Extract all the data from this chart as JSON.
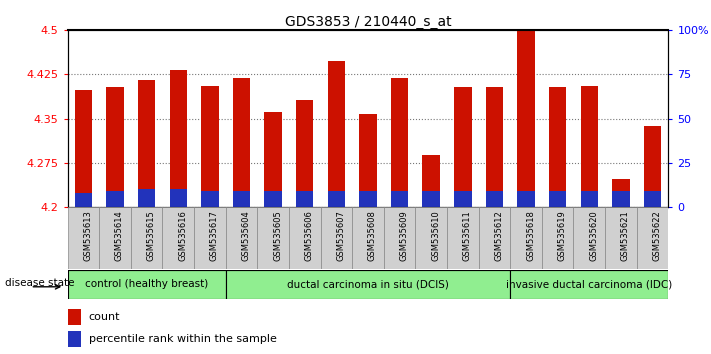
{
  "title": "GDS3853 / 210440_s_at",
  "samples": [
    "GSM535613",
    "GSM535614",
    "GSM535615",
    "GSM535616",
    "GSM535617",
    "GSM535604",
    "GSM535605",
    "GSM535606",
    "GSM535607",
    "GSM535608",
    "GSM535609",
    "GSM535610",
    "GSM535611",
    "GSM535612",
    "GSM535618",
    "GSM535619",
    "GSM535620",
    "GSM535621",
    "GSM535622"
  ],
  "count_values": [
    4.398,
    4.403,
    4.416,
    4.432,
    4.405,
    4.418,
    4.362,
    4.382,
    4.448,
    4.357,
    4.418,
    4.288,
    4.403,
    4.403,
    4.498,
    4.403,
    4.405,
    4.248,
    4.338
  ],
  "percentile_values": [
    8,
    9,
    10,
    10,
    9,
    9,
    9,
    9,
    9,
    9,
    9,
    9,
    9,
    9,
    9,
    9,
    9,
    9,
    9
  ],
  "groups": [
    {
      "label": "control (healthy breast)",
      "start": 0,
      "end": 5
    },
    {
      "label": "ductal carcinoma in situ (DCIS)",
      "start": 5,
      "end": 14
    },
    {
      "label": "invasive ductal carcinoma (IDC)",
      "start": 14,
      "end": 19
    }
  ],
  "group_color": "#90EE90",
  "ymin": 4.2,
  "ymax": 4.5,
  "y2min": 0,
  "y2max": 100,
  "bar_color": "#cc1100",
  "percentile_color": "#2233bb",
  "yticks": [
    4.2,
    4.275,
    4.35,
    4.425,
    4.5
  ],
  "y2ticks": [
    0,
    25,
    50,
    75,
    100
  ],
  "label_count": "count",
  "label_percentile": "percentile rank within the sample",
  "disease_state_label": "disease state"
}
